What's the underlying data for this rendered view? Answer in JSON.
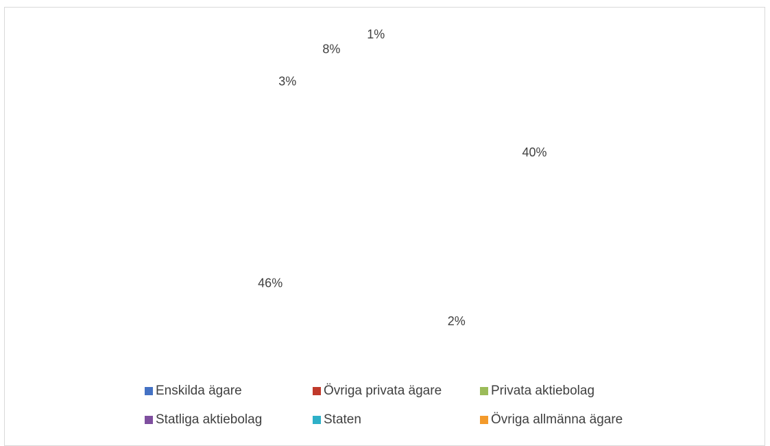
{
  "chart_data": {
    "type": "pie",
    "categories": [
      "Enskilda ägare",
      "Övriga privata ägare",
      "Privata aktiebolag",
      "Statliga aktiebolag",
      "Staten",
      "Övriga allmänna ägare"
    ],
    "values": [
      40,
      2,
      46,
      3,
      8,
      1
    ],
    "data_labels": [
      "40%",
      "2%",
      "46%",
      "3%",
      "8%",
      "1%"
    ],
    "colors": [
      "#4472c4",
      "#c0392b",
      "#9bbb59",
      "#7f4f9f",
      "#2eb0c8",
      "#f39a2b"
    ],
    "title": "",
    "legend_position": "bottom",
    "slices_rendered": false
  }
}
